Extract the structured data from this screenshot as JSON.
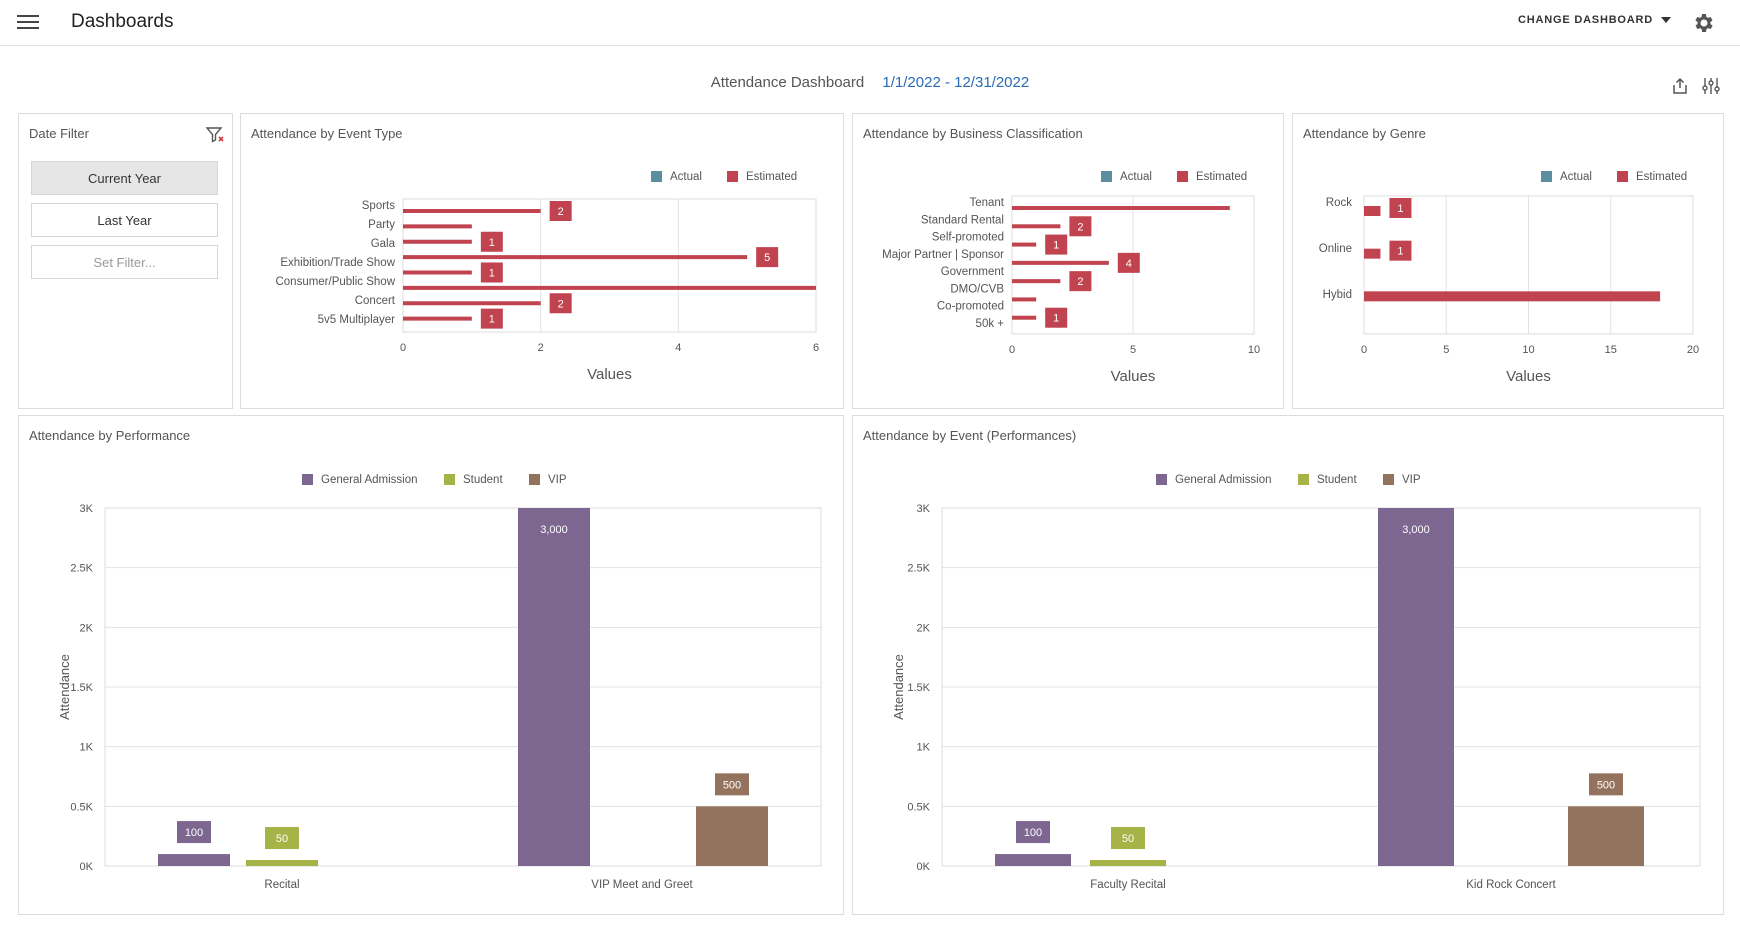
{
  "app": {
    "title": "Dashboards",
    "change_dashboard": "CHANGE DASHBOARD"
  },
  "dashboard": {
    "title": "Attendance Dashboard",
    "date_range": "1/1/2022 - 12/31/2022"
  },
  "date_filter": {
    "title": "Date Filter",
    "buttons": [
      "Current Year",
      "Last Year",
      "Set Filter..."
    ],
    "selected": "Current Year"
  },
  "colors": {
    "actual": "#5b8e9e",
    "estimated": "#c0434f",
    "general": "#7d6690",
    "student": "#a5b347",
    "vip": "#94735e"
  },
  "panels": {
    "event_type": "Attendance by Event Type",
    "business": "Attendance by Business Classification",
    "genre": "Attendance by Genre",
    "performance": "Attendance by Performance",
    "event_perf": "Attendance by Event (Performances)"
  },
  "chart_data": [
    {
      "id": "event_type",
      "type": "bar",
      "orientation": "horizontal",
      "title": "Attendance by Event Type",
      "xlabel": "Values",
      "xlim": [
        0,
        6
      ],
      "xticks": [
        0,
        2,
        4,
        6
      ],
      "legend": [
        "Actual",
        "Estimated"
      ],
      "categories": [
        "Sports",
        "Party",
        "Gala",
        "Exhibition/Trade Show",
        "Consumer/Public Show",
        "Concert",
        "5v5 Multiplayer"
      ],
      "bars": [
        {
          "value": 2,
          "label": "2"
        },
        {
          "value": 1,
          "label": ""
        },
        {
          "value": 1,
          "label": "1"
        },
        {
          "value": 5,
          "label": "5"
        },
        {
          "value": 1,
          "label": "1"
        },
        {
          "value": 6,
          "label": ""
        },
        {
          "value": 2,
          "label": "2"
        },
        {
          "value": 1,
          "label": "1"
        }
      ]
    },
    {
      "id": "business",
      "type": "bar",
      "orientation": "horizontal",
      "title": "Attendance by Business Classification",
      "xlabel": "Values",
      "xlim": [
        0,
        10
      ],
      "xticks": [
        0,
        5,
        10
      ],
      "legend": [
        "Actual",
        "Estimated"
      ],
      "categories": [
        "Tenant",
        "Standard Rental",
        "Self-promoted",
        "Major Partner | Sponsor",
        "Government",
        "DMO/CVB",
        "Co-promoted",
        "50k +"
      ],
      "bars": [
        {
          "value": 9,
          "label": ""
        },
        {
          "value": 2,
          "label": "2"
        },
        {
          "value": 1,
          "label": "1"
        },
        {
          "value": 4,
          "label": "4"
        },
        {
          "value": 2,
          "label": "2"
        },
        {
          "value": 1,
          "label": ""
        },
        {
          "value": 1,
          "label": "1"
        }
      ]
    },
    {
      "id": "genre",
      "type": "bar",
      "orientation": "horizontal",
      "title": "Attendance by Genre",
      "xlabel": "Values",
      "xlim": [
        0,
        20
      ],
      "xticks": [
        0,
        5,
        10,
        15,
        20
      ],
      "legend": [
        "Actual",
        "Estimated"
      ],
      "categories": [
        "Rock",
        "Online",
        "Hybid"
      ],
      "bars": [
        {
          "value": 1,
          "label": "1"
        },
        {
          "value": 1,
          "label": "1"
        },
        {
          "value": 18,
          "label": ""
        }
      ]
    },
    {
      "id": "performance",
      "type": "bar",
      "title": "Attendance by Performance",
      "ylabel": "Attendance",
      "ylim": [
        0,
        3000
      ],
      "yticks": [
        "0K",
        "0.5K",
        "1K",
        "1.5K",
        "2K",
        "2.5K",
        "3K"
      ],
      "legend": [
        "General Admission",
        "Student",
        "VIP"
      ],
      "categories": [
        "Recital",
        "VIP Meet and Greet"
      ],
      "bars": [
        {
          "group": 0,
          "series": "General Admission",
          "value": 100,
          "label": "100"
        },
        {
          "group": 0,
          "series": "Student",
          "value": 50,
          "label": "50"
        },
        {
          "group": 1,
          "series": "General Admission",
          "value": 3000,
          "label": "3,000"
        },
        {
          "group": 1,
          "series": "VIP",
          "value": 500,
          "label": "500"
        }
      ]
    },
    {
      "id": "event_perf",
      "type": "bar",
      "title": "Attendance by Event (Performances)",
      "ylabel": "Attendance",
      "ylim": [
        0,
        3000
      ],
      "yticks": [
        "0K",
        "0.5K",
        "1K",
        "1.5K",
        "2K",
        "2.5K",
        "3K"
      ],
      "legend": [
        "General Admission",
        "Student",
        "VIP"
      ],
      "categories": [
        "Faculty Recital",
        "Kid Rock Concert"
      ],
      "bars": [
        {
          "group": 0,
          "series": "General Admission",
          "value": 100,
          "label": "100"
        },
        {
          "group": 0,
          "series": "Student",
          "value": 50,
          "label": "50"
        },
        {
          "group": 1,
          "series": "General Admission",
          "value": 3000,
          "label": "3,000"
        },
        {
          "group": 1,
          "series": "VIP",
          "value": 500,
          "label": "500"
        }
      ]
    }
  ]
}
